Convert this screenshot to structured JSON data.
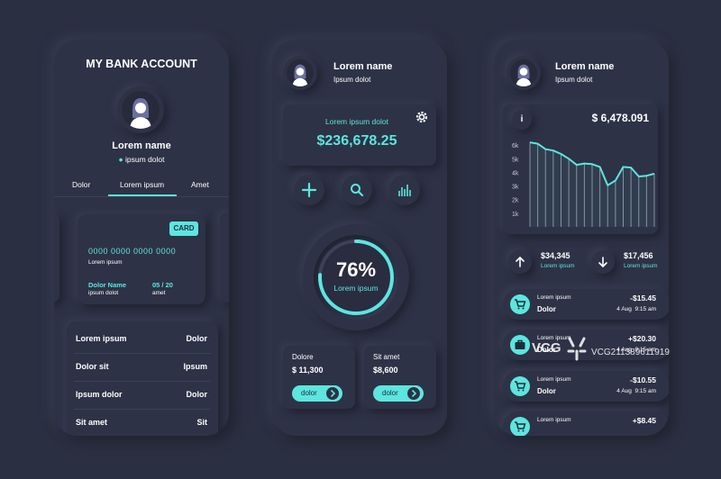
{
  "colors": {
    "background": "#2b2f42",
    "panel": "#2e3246",
    "accent": "#5ce6df",
    "text": "#ffffff"
  },
  "screen1": {
    "title": "MY BANK ACCOUNT",
    "user_name": "Lorem name",
    "user_location": "ipsum dolot",
    "tabs": [
      {
        "label": "Dolor"
      },
      {
        "label": "Lorem ipsum",
        "active": true
      },
      {
        "label": "Amet"
      }
    ],
    "card": {
      "badge": "CARD",
      "number": "0000 0000 0000 0000",
      "number_caption": "Lorem ipsum",
      "holder_label": "Dolor Name",
      "holder_value": "ipsum dolot",
      "expiry_label": "05 / 20",
      "expiry_value": "amet"
    },
    "rows": [
      {
        "label": "Lorem ipsum",
        "value": "Dolor"
      },
      {
        "label": "Dolor sit",
        "value": "Ipsum"
      },
      {
        "label": "Ipsum dolor",
        "value": "Dolor"
      },
      {
        "label": "Sit amet",
        "value": "Sit"
      }
    ]
  },
  "screen2": {
    "user_name": "Lorem name",
    "user_location": "Ipsum dolot",
    "balance_label": "Lorem ipsum dolot",
    "balance_value": "$236,678.25",
    "icons": [
      "plus-icon",
      "search-icon",
      "bar-chart-icon"
    ],
    "progress": {
      "value": 0.76,
      "label_value": "76%",
      "label_caption": "Lorem ipsum"
    },
    "cards": [
      {
        "title": "Dolore",
        "amount": "$ 11,300",
        "button": "dolor"
      },
      {
        "title": "Sit amet",
        "amount": "$8,600",
        "button": "dolor"
      }
    ]
  },
  "screen3": {
    "user_name": "Lorem name",
    "user_location": "Ipsum dolot",
    "info_label": "i",
    "chart_total": "$ 6,478.091",
    "chart_data": {
      "type": "area",
      "y_tick_labels": [
        "6k",
        "5k",
        "4k",
        "3k",
        "2k",
        "1k"
      ],
      "ylim": [
        0,
        7000
      ],
      "values": [
        6200,
        6100,
        5700,
        5600,
        5350,
        5000,
        4550,
        4650,
        4600,
        4400,
        3050,
        3400,
        4400,
        4350,
        3700,
        3750,
        3900
      ]
    },
    "stats": [
      {
        "icon": "arrow-up-icon",
        "amount": "$34,345",
        "caption": "Lorem ipsum"
      },
      {
        "icon": "arrow-down-icon",
        "amount": "$17,456",
        "caption": "Lorem ipsum"
      }
    ],
    "transactions": [
      {
        "icon": "cart-icon",
        "title": "Lorem ipsum",
        "name": "Dolor",
        "amount": "-$15.45",
        "date": "4 Aug  9:15 am"
      },
      {
        "icon": "briefcase-icon",
        "title": "Lorem ipsum",
        "name": "Dolor",
        "amount": "+$20.30",
        "date": "4 Aug  9:15 am"
      },
      {
        "icon": "cart-icon",
        "title": "Lorem ipsum",
        "name": "Dolor",
        "amount": "-$10.55",
        "date": "4 Aug  9:15 am"
      },
      {
        "icon": "cart-icon",
        "title": "Lorem ipsum",
        "name": "",
        "amount": "+$8.45",
        "date": ""
      }
    ]
  },
  "watermark": {
    "logo": "VCG",
    "id": "VCG211389611919"
  }
}
